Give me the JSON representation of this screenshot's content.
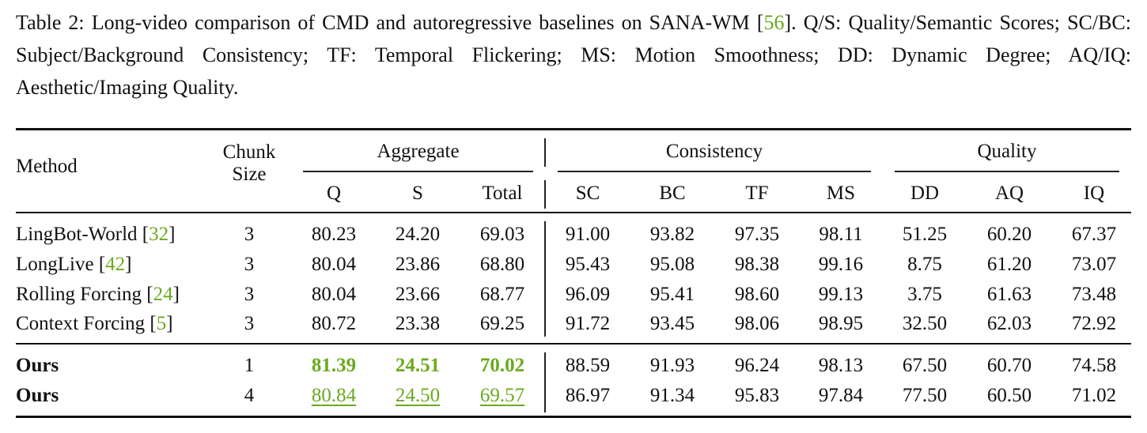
{
  "caption": {
    "label": "Table 2:",
    "text_before": " Long-video comparison of CMD and autoregressive baselines on SANA-WM [",
    "cite": "56",
    "text_after": "]. Q/S: Quality/Semantic Scores; SC/BC: Subject/Background Consistency; TF: Temporal Flickering; MS: Motion Smoothness; DD: Dynamic Degree; AQ/IQ: Aesthetic/Imaging Quality."
  },
  "header": {
    "method": "Method",
    "chunk_line1": "Chunk",
    "chunk_line2": "Size",
    "group_aggregate": "Aggregate",
    "group_consistency": "Consistency",
    "group_quality": "Quality",
    "cols": [
      "Q",
      "S",
      "Total",
      "SC",
      "BC",
      "TF",
      "MS",
      "DD",
      "AQ",
      "IQ"
    ]
  },
  "rows": [
    {
      "method": "LingBot-World [",
      "cite": "32",
      "close": "]",
      "chunk": "3",
      "vals": [
        "80.23",
        "24.20",
        "69.03",
        "91.00",
        "93.82",
        "97.35",
        "98.11",
        "51.25",
        "60.20",
        "67.37"
      ]
    },
    {
      "method": "LongLive [",
      "cite": "42",
      "close": "]",
      "chunk": "3",
      "vals": [
        "80.04",
        "23.86",
        "68.80",
        "95.43",
        "95.08",
        "98.38",
        "99.16",
        "8.75",
        "61.20",
        "73.07"
      ]
    },
    {
      "method": "Rolling Forcing [",
      "cite": "24",
      "close": "]",
      "chunk": "3",
      "vals": [
        "80.04",
        "23.66",
        "68.77",
        "96.09",
        "95.41",
        "98.60",
        "99.13",
        "3.75",
        "61.63",
        "73.48"
      ]
    },
    {
      "method": "Context Forcing [",
      "cite": "5",
      "close": "]",
      "chunk": "3",
      "vals": [
        "80.72",
        "23.38",
        "69.25",
        "91.72",
        "93.45",
        "98.06",
        "98.95",
        "32.50",
        "62.03",
        "72.92"
      ]
    },
    {
      "method": "Ours",
      "chunk": "1",
      "vals": [
        "81.39",
        "24.51",
        "70.02",
        "88.59",
        "91.93",
        "96.24",
        "98.13",
        "67.50",
        "60.70",
        "74.58"
      ]
    },
    {
      "method": "Ours",
      "chunk": "4",
      "vals": [
        "80.84",
        "24.50",
        "69.57",
        "86.97",
        "91.34",
        "95.83",
        "97.84",
        "77.50",
        "60.50",
        "71.02"
      ]
    }
  ],
  "colors": {
    "highlight": "#6aaa1e",
    "text": "#111111"
  }
}
